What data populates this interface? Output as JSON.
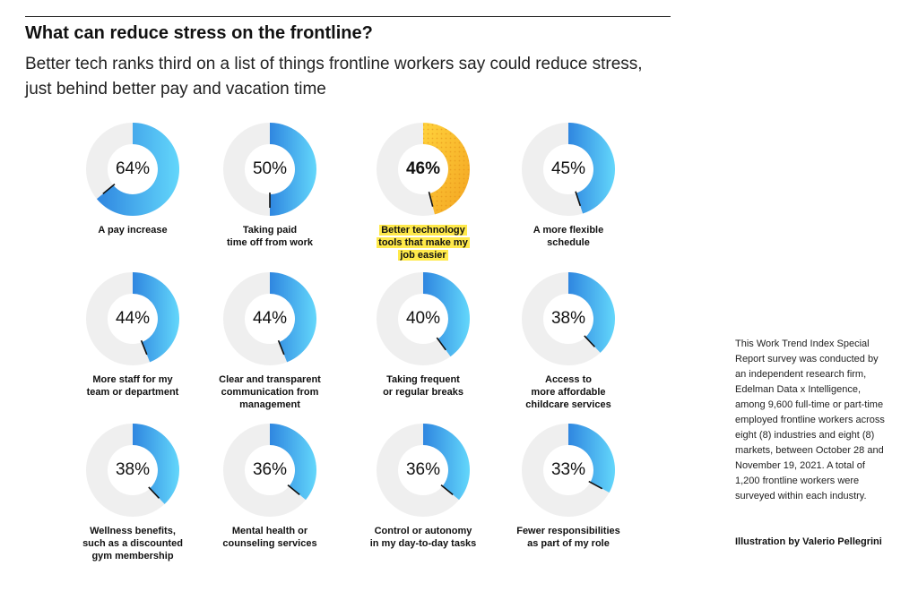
{
  "header": {
    "title": "What can reduce stress on the frontline?",
    "subtitle": "Better tech ranks third on a list of things frontline workers say could reduce stress, just behind better pay and vacation time"
  },
  "colors": {
    "track": "#efefef",
    "gradient_start": "#2f86e0",
    "gradient_end": "#63d7fb",
    "highlight_start": "#ffd23c",
    "highlight_end": "#f3a421",
    "highlight_label": "#ffe94a",
    "tick": "#111111"
  },
  "chart_data": {
    "type": "pie",
    "variant": "donut small multiples",
    "unit": "%",
    "highlighted_index": 2,
    "items": [
      {
        "category": "A pay increase",
        "value": 64,
        "label": "64%",
        "caption_lines": [
          "A pay increase"
        ]
      },
      {
        "category": "Taking paid time off from work",
        "value": 50,
        "label": "50%",
        "caption_lines": [
          "Taking paid",
          "time off from work"
        ]
      },
      {
        "category": "Better technology tools that make my job easier",
        "value": 46,
        "label": "46%",
        "caption_lines": [
          "Better technology",
          "tools that make my",
          "job easier"
        ]
      },
      {
        "category": "A more flexible schedule",
        "value": 45,
        "label": "45%",
        "caption_lines": [
          "A more flexible",
          "schedule"
        ]
      },
      {
        "category": "More staff for my team or department",
        "value": 44,
        "label": "44%",
        "caption_lines": [
          "More staff for my",
          "team or department"
        ]
      },
      {
        "category": "Clear and transparent communication from management",
        "value": 44,
        "label": "44%",
        "caption_lines": [
          "Clear and transparent",
          "communication from",
          "management"
        ]
      },
      {
        "category": "Taking frequent or regular breaks",
        "value": 40,
        "label": "40%",
        "caption_lines": [
          "Taking frequent",
          "or regular breaks"
        ]
      },
      {
        "category": "Access to more affordable childcare services",
        "value": 38,
        "label": "38%",
        "caption_lines": [
          "Access to",
          "more affordable",
          "childcare services"
        ]
      },
      {
        "category": "Wellness benefits, such as a discounted gym membership",
        "value": 38,
        "label": "38%",
        "caption_lines": [
          "Wellness benefits,",
          "such as a discounted",
          "gym membership"
        ]
      },
      {
        "category": "Mental health or counseling services",
        "value": 36,
        "label": "36%",
        "caption_lines": [
          "Mental health or",
          "counseling services"
        ]
      },
      {
        "category": "Control or autonomy in my day-to-day tasks",
        "value": 36,
        "label": "36%",
        "caption_lines": [
          "Control or autonomy",
          "in my day-to-day tasks"
        ]
      },
      {
        "category": "Fewer responsibilities as part of my role",
        "value": 33,
        "label": "33%",
        "caption_lines": [
          "Fewer responsibilities",
          "as part of my role"
        ]
      }
    ]
  },
  "footnote": {
    "text": "This Work Trend Index Special Report survey was conducted by an independent research firm, Edelman Data x Intelligence, among 9,600 full-time or part-time employed frontline workers across eight (8) industries and eight (8) markets, between October 28 and November 19, 2021. A total of 1,200 frontline workers were surveyed within each industry.",
    "credit": "Illustration by Valerio Pellegrini"
  }
}
